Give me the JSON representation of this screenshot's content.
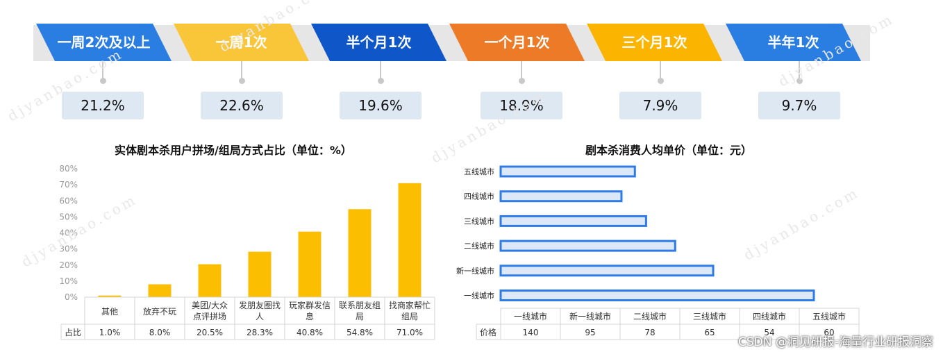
{
  "frequency": {
    "items": [
      {
        "label": "一周2次及以上",
        "value": "21.2%",
        "color": "#2a7de1"
      },
      {
        "label": "一周1次",
        "value": "22.6%",
        "color": "#f9c63a"
      },
      {
        "label": "半个月1次",
        "value": "19.6%",
        "color": "#0f56c9"
      },
      {
        "label": "一个月1次",
        "value": "18.9%",
        "color": "#ec7a26"
      },
      {
        "label": "三个月1次",
        "value": "7.9%",
        "color": "#fbb500"
      },
      {
        "label": "半年1次",
        "value": "9.7%",
        "color": "#2a7de1"
      }
    ]
  },
  "chart_data": [
    {
      "type": "bar",
      "title": "实体剧本杀用户拼场/组局方式占比（单位：%）",
      "categories": [
        "其他",
        "放弃不玩",
        "美团/大众点评拼场",
        "发朋友圈找人",
        "玩家群发信息",
        "联系朋友组局",
        "找商家帮忙组局"
      ],
      "category_lines": [
        [
          "其他"
        ],
        [
          "放弃不玩"
        ],
        [
          "美团/大众",
          "点评拼场"
        ],
        [
          "发朋友圈找",
          "人"
        ],
        [
          "玩家群发信",
          "息"
        ],
        [
          "联系朋友组",
          "局"
        ],
        [
          "找商家帮忙",
          "组局"
        ]
      ],
      "series": [
        {
          "name": "占比",
          "values": [
            1.0,
            8.0,
            20.5,
            28.3,
            40.8,
            54.8,
            71.0
          ]
        }
      ],
      "value_labels": [
        "1.0%",
        "8.0%",
        "20.5%",
        "28.3%",
        "40.8%",
        "54.8%",
        "71.0%"
      ],
      "yticks": [
        "0%",
        "10%",
        "20%",
        "30%",
        "40%",
        "50%",
        "60%",
        "70%",
        "80%"
      ],
      "ylim": [
        0,
        80
      ],
      "bar_color": "#fbbe00",
      "grid": false
    },
    {
      "type": "bar",
      "orientation": "horizontal",
      "title": "剧本杀消费人均单价（单位：元）",
      "categories": [
        "一线城市",
        "新一线城市",
        "二线城市",
        "三线城市",
        "四线城市",
        "五线城市"
      ],
      "series": [
        {
          "name": "价格",
          "values": [
            140,
            95,
            78,
            65,
            54,
            60
          ]
        }
      ],
      "value_labels": [
        "140",
        "95",
        "78",
        "65",
        "54",
        "60"
      ],
      "xlim": [
        0,
        140
      ],
      "bar_fill": "#dce8f7",
      "bar_stroke": "#2f7be5",
      "grid": false
    }
  ],
  "watermark": "djyanbao.com",
  "credit": "CSDN @洞见研报-海量行业研报洞察"
}
